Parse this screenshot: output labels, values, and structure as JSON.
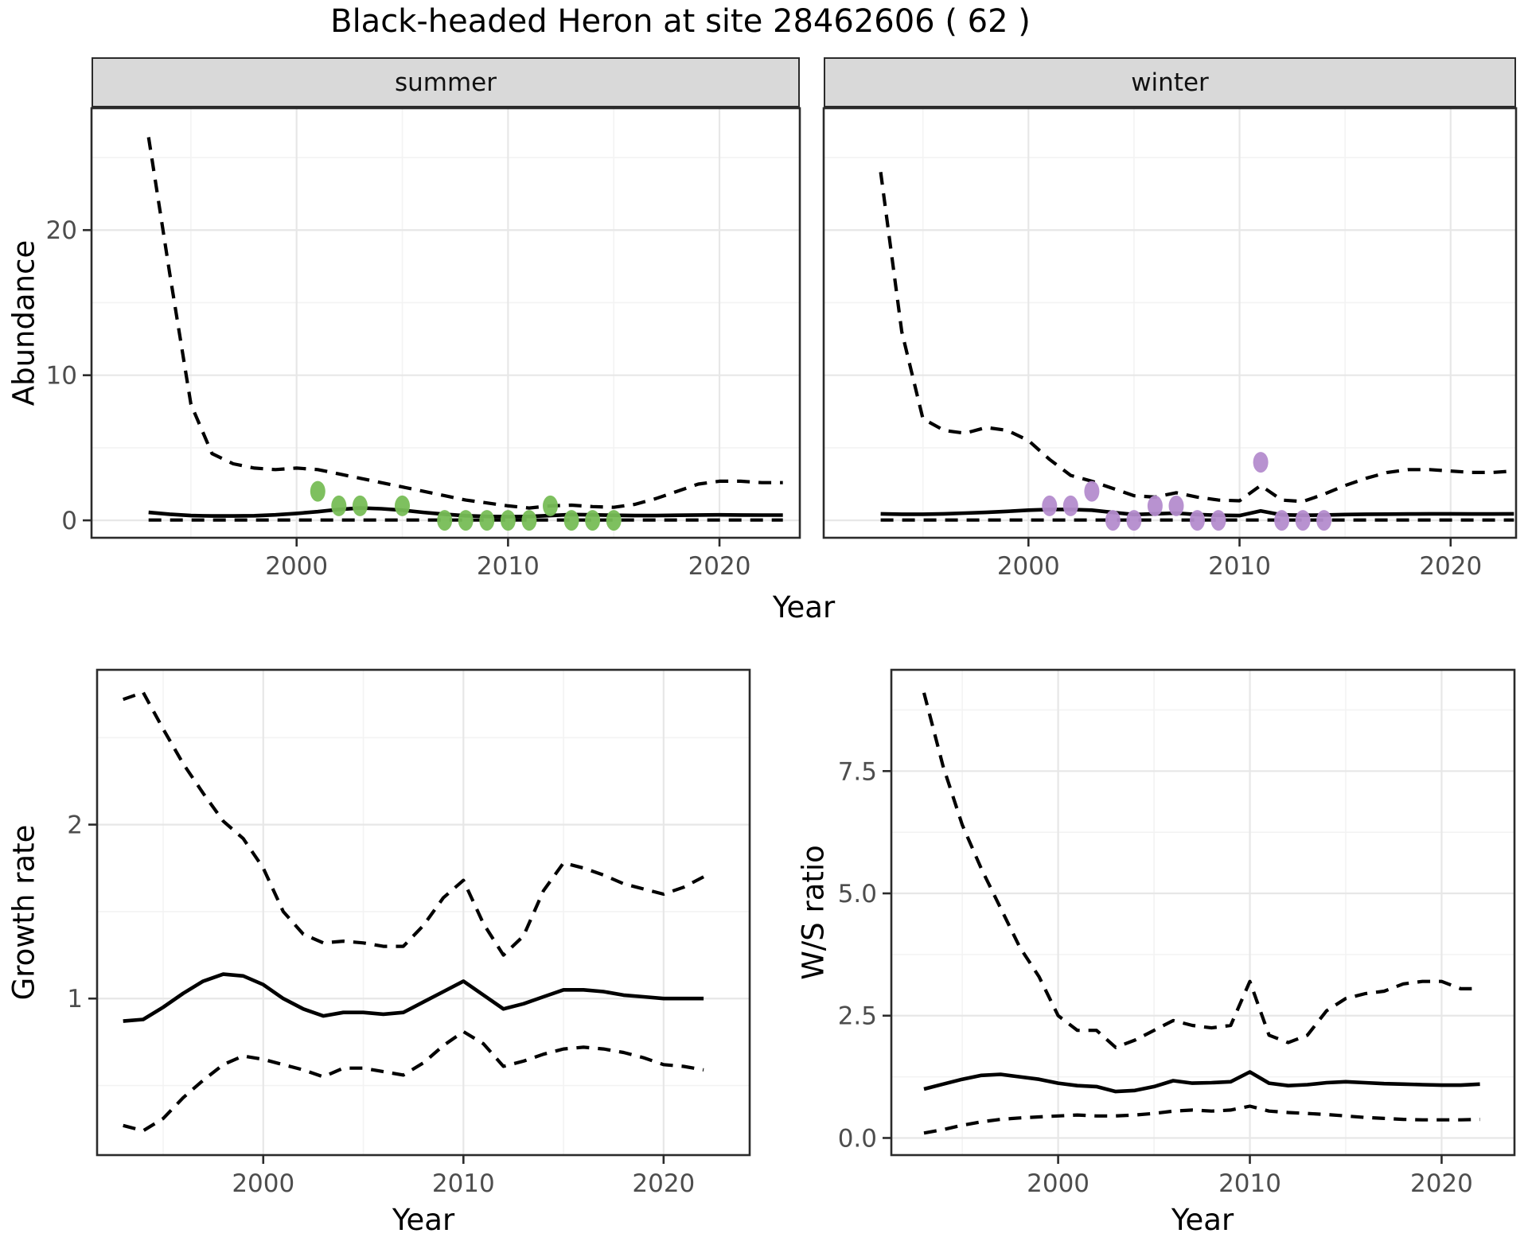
{
  "title": "Black-headed Heron at site 28462606 ( 62 )",
  "axes": {
    "abundance_y_label": "Abundance",
    "top_x_label": "Year",
    "growth_y_label": "Growth rate",
    "growth_x_label": "Year",
    "ws_y_label": "W/S ratio",
    "ws_x_label": "Year"
  },
  "colors": {
    "summer_point": "#77bd56",
    "winter_point": "#b48cce",
    "line": "#000000",
    "grid_major": "#e7e7e7",
    "grid_minor": "#f3f3f3",
    "strip_bg": "#d9d9d9",
    "panel_border": "#2b2b2b",
    "tick_text": "#4d4d4d"
  },
  "chart_data": [
    {
      "id": "summer",
      "type": "line",
      "facet_label": "summer",
      "xlabel": "Year",
      "ylabel": "Abundance",
      "x_range": [
        1990.3,
        2023.8
      ],
      "y_range": [
        -1.2,
        28.4
      ],
      "x_ticks": [
        2000,
        2010,
        2020
      ],
      "x_tick_labels": [
        "2000",
        "2010",
        "2020"
      ],
      "y_ticks": [
        0,
        10,
        20
      ],
      "y_tick_labels": [
        "0",
        "10",
        "20"
      ],
      "grid": true,
      "legend": "none",
      "years": [
        1993,
        1994,
        1995,
        1996,
        1997,
        1998,
        1999,
        2000,
        2001,
        2002,
        2003,
        2004,
        2005,
        2006,
        2007,
        2008,
        2009,
        2010,
        2011,
        2012,
        2013,
        2014,
        2015,
        2016,
        2017,
        2018,
        2019,
        2020,
        2021,
        2022,
        2023
      ],
      "series": [
        {
          "name": "lower_ci",
          "style": "dashed",
          "values": [
            0.02,
            0.02,
            0.02,
            0.02,
            0.02,
            0.02,
            0.02,
            0.02,
            0.02,
            0.02,
            0.02,
            0.02,
            0.02,
            0.02,
            0.02,
            0.02,
            0.02,
            0.02,
            0.02,
            0.02,
            0.02,
            0.02,
            0.02,
            0.02,
            0.02,
            0.02,
            0.02,
            0.02,
            0.02,
            0.02,
            0.02
          ]
        },
        {
          "name": "upper_ci",
          "style": "dashed",
          "values": [
            26.4,
            17.0,
            8.0,
            4.6,
            3.9,
            3.6,
            3.5,
            3.6,
            3.5,
            3.2,
            2.9,
            2.6,
            2.3,
            2.0,
            1.7,
            1.4,
            1.2,
            1.0,
            0.85,
            1.0,
            1.05,
            0.95,
            0.9,
            1.1,
            1.5,
            2.0,
            2.5,
            2.7,
            2.7,
            2.6,
            2.6
          ]
        },
        {
          "name": "median",
          "style": "solid",
          "values": [
            0.55,
            0.42,
            0.33,
            0.3,
            0.3,
            0.32,
            0.38,
            0.48,
            0.6,
            0.75,
            0.85,
            0.8,
            0.7,
            0.55,
            0.42,
            0.32,
            0.27,
            0.25,
            0.27,
            0.33,
            0.4,
            0.38,
            0.35,
            0.33,
            0.33,
            0.35,
            0.37,
            0.38,
            0.37,
            0.36,
            0.36
          ]
        }
      ],
      "points": {
        "name": "summer_observations",
        "color_key": "summer_point",
        "xy": [
          [
            2001,
            2
          ],
          [
            2002,
            1
          ],
          [
            2003,
            1
          ],
          [
            2005,
            1
          ],
          [
            2007,
            0
          ],
          [
            2008,
            0
          ],
          [
            2009,
            0
          ],
          [
            2010,
            0
          ],
          [
            2011,
            0
          ],
          [
            2012,
            1
          ],
          [
            2013,
            0
          ],
          [
            2014,
            0
          ],
          [
            2015,
            0
          ]
        ]
      }
    },
    {
      "id": "winter",
      "type": "line",
      "facet_label": "winter",
      "xlabel": "Year",
      "ylabel": "Abundance",
      "x_range": [
        1990.3,
        2023.1
      ],
      "y_range": [
        -1.2,
        28.4
      ],
      "x_ticks": [
        2000,
        2010,
        2020
      ],
      "x_tick_labels": [
        "2000",
        "2010",
        "2020"
      ],
      "y_ticks": [
        0,
        10,
        20
      ],
      "y_tick_labels": [
        "0",
        "10",
        "20"
      ],
      "grid": true,
      "legend": "none",
      "years": [
        1993,
        1994,
        1995,
        1996,
        1997,
        1998,
        1999,
        2000,
        2001,
        2002,
        2003,
        2004,
        2005,
        2006,
        2007,
        2008,
        2009,
        2010,
        2011,
        2012,
        2013,
        2014,
        2015,
        2016,
        2017,
        2018,
        2019,
        2020,
        2021,
        2022,
        2023
      ],
      "series": [
        {
          "name": "lower_ci",
          "style": "dashed",
          "values": [
            0.02,
            0.02,
            0.02,
            0.02,
            0.02,
            0.02,
            0.02,
            0.02,
            0.02,
            0.02,
            0.02,
            0.02,
            0.02,
            0.02,
            0.02,
            0.02,
            0.02,
            0.02,
            0.02,
            0.02,
            0.02,
            0.02,
            0.02,
            0.02,
            0.02,
            0.02,
            0.02,
            0.02,
            0.02,
            0.02,
            0.02
          ]
        },
        {
          "name": "upper_ci",
          "style": "dashed",
          "values": [
            24.0,
            13.0,
            7.0,
            6.2,
            6.0,
            6.4,
            6.2,
            5.5,
            4.2,
            3.1,
            2.7,
            2.2,
            1.7,
            1.6,
            1.9,
            1.6,
            1.4,
            1.35,
            2.4,
            1.4,
            1.3,
            1.8,
            2.4,
            2.9,
            3.3,
            3.5,
            3.5,
            3.4,
            3.3,
            3.3,
            3.4
          ]
        },
        {
          "name": "median",
          "style": "solid",
          "values": [
            0.45,
            0.42,
            0.42,
            0.45,
            0.5,
            0.55,
            0.62,
            0.7,
            0.75,
            0.75,
            0.7,
            0.55,
            0.4,
            0.45,
            0.5,
            0.4,
            0.35,
            0.33,
            0.65,
            0.38,
            0.35,
            0.37,
            0.4,
            0.42,
            0.43,
            0.44,
            0.45,
            0.45,
            0.44,
            0.44,
            0.45
          ]
        }
      ],
      "points": {
        "name": "winter_observations",
        "color_key": "winter_point",
        "xy": [
          [
            2001,
            1
          ],
          [
            2002,
            1
          ],
          [
            2003,
            2
          ],
          [
            2004,
            0
          ],
          [
            2005,
            0
          ],
          [
            2006,
            1
          ],
          [
            2007,
            1
          ],
          [
            2008,
            0
          ],
          [
            2009,
            0
          ],
          [
            2011,
            4
          ],
          [
            2012,
            0
          ],
          [
            2013,
            0
          ],
          [
            2014,
            0
          ]
        ]
      }
    },
    {
      "id": "growth",
      "type": "line",
      "facet_label": null,
      "xlabel": "Year",
      "ylabel": "Growth rate",
      "x_range": [
        1991.7,
        2024.3
      ],
      "y_range": [
        0.1,
        2.89
      ],
      "x_ticks": [
        2000,
        2010,
        2020
      ],
      "x_tick_labels": [
        "2000",
        "2010",
        "2020"
      ],
      "y_ticks": [
        1,
        2
      ],
      "y_tick_labels": [
        "1",
        "2"
      ],
      "grid": true,
      "legend": "none",
      "years": [
        1993,
        1994,
        1995,
        1996,
        1997,
        1998,
        1999,
        2000,
        2001,
        2002,
        2003,
        2004,
        2005,
        2006,
        2007,
        2008,
        2009,
        2010,
        2011,
        2012,
        2013,
        2014,
        2015,
        2016,
        2017,
        2018,
        2019,
        2020,
        2021,
        2022
      ],
      "series": [
        {
          "name": "lower_ci",
          "style": "dashed",
          "values": [
            0.27,
            0.24,
            0.31,
            0.43,
            0.53,
            0.62,
            0.67,
            0.65,
            0.62,
            0.59,
            0.55,
            0.6,
            0.6,
            0.58,
            0.56,
            0.63,
            0.73,
            0.81,
            0.74,
            0.61,
            0.64,
            0.68,
            0.71,
            0.72,
            0.71,
            0.69,
            0.66,
            0.62,
            0.61,
            0.59
          ]
        },
        {
          "name": "upper_ci",
          "style": "dashed",
          "values": [
            2.72,
            2.76,
            2.55,
            2.35,
            2.18,
            2.02,
            1.92,
            1.75,
            1.5,
            1.37,
            1.32,
            1.33,
            1.32,
            1.3,
            1.3,
            1.42,
            1.58,
            1.68,
            1.43,
            1.25,
            1.36,
            1.62,
            1.78,
            1.75,
            1.71,
            1.66,
            1.63,
            1.6,
            1.64,
            1.7
          ]
        },
        {
          "name": "median",
          "style": "solid",
          "values": [
            0.87,
            0.88,
            0.95,
            1.03,
            1.1,
            1.14,
            1.13,
            1.08,
            1.0,
            0.94,
            0.9,
            0.92,
            0.92,
            0.91,
            0.92,
            0.98,
            1.04,
            1.1,
            1.02,
            0.94,
            0.97,
            1.01,
            1.05,
            1.05,
            1.04,
            1.02,
            1.01,
            1.0,
            1.0,
            1.0
          ]
        }
      ],
      "points": null
    },
    {
      "id": "ws",
      "type": "line",
      "facet_label": null,
      "xlabel": "Year",
      "ylabel": "W/S ratio",
      "x_range": [
        1991.3,
        2023.8
      ],
      "y_range": [
        -0.35,
        9.57
      ],
      "x_ticks": [
        2000,
        2010,
        2020
      ],
      "x_tick_labels": [
        "2000",
        "2010",
        "2020"
      ],
      "y_ticks": [
        0,
        2.5,
        5,
        7.5
      ],
      "y_tick_labels": [
        "0.0",
        "2.5",
        "5.0",
        "7.5"
      ],
      "grid": true,
      "legend": "none",
      "years": [
        1993,
        1994,
        1995,
        1996,
        1997,
        1998,
        1999,
        2000,
        2001,
        2002,
        2003,
        2004,
        2005,
        2006,
        2007,
        2008,
        2009,
        2010,
        2011,
        2012,
        2013,
        2014,
        2015,
        2016,
        2017,
        2018,
        2019,
        2020,
        2021,
        2022
      ],
      "series": [
        {
          "name": "lower_ci",
          "style": "dashed",
          "values": [
            0.1,
            0.17,
            0.26,
            0.33,
            0.38,
            0.41,
            0.43,
            0.45,
            0.47,
            0.45,
            0.45,
            0.47,
            0.5,
            0.55,
            0.57,
            0.55,
            0.57,
            0.65,
            0.55,
            0.52,
            0.5,
            0.48,
            0.45,
            0.42,
            0.4,
            0.38,
            0.37,
            0.37,
            0.37,
            0.38
          ]
        },
        {
          "name": "upper_ci",
          "style": "dashed",
          "values": [
            9.1,
            7.6,
            6.4,
            5.5,
            4.7,
            3.9,
            3.3,
            2.5,
            2.2,
            2.2,
            1.85,
            2.0,
            2.2,
            2.4,
            2.3,
            2.25,
            2.3,
            3.2,
            2.1,
            1.95,
            2.1,
            2.6,
            2.85,
            2.95,
            3.0,
            3.15,
            3.2,
            3.2,
            3.05,
            3.05
          ]
        },
        {
          "name": "median",
          "style": "solid",
          "values": [
            1.0,
            1.1,
            1.2,
            1.28,
            1.3,
            1.25,
            1.2,
            1.12,
            1.07,
            1.05,
            0.95,
            0.97,
            1.05,
            1.17,
            1.12,
            1.13,
            1.15,
            1.35,
            1.12,
            1.07,
            1.09,
            1.13,
            1.15,
            1.13,
            1.11,
            1.1,
            1.09,
            1.08,
            1.08,
            1.1
          ]
        }
      ],
      "points": null
    }
  ]
}
